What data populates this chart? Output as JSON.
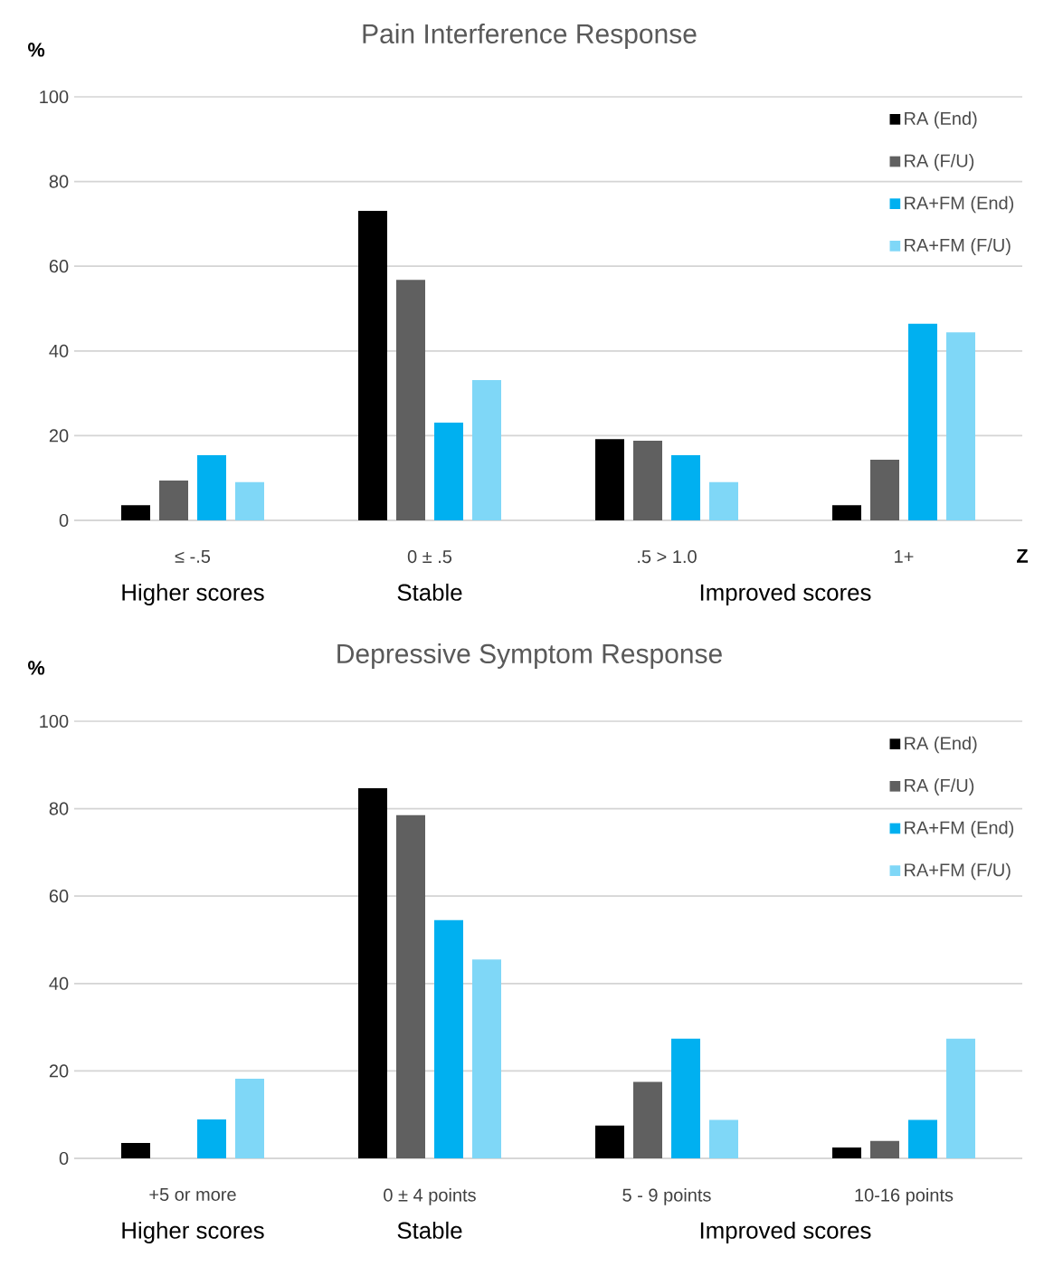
{
  "chart_data": [
    {
      "type": "bar",
      "title": "Pain Interference Response",
      "ylabel": "%",
      "xlabel": "Z",
      "categories": [
        "≤ -.5",
        "0 ± .5",
        ".5 > 1.0",
        "1+"
      ],
      "series": [
        {
          "name": "RA (End)",
          "color": "#000000",
          "values": [
            3.6,
            73.1,
            19.2,
            3.6
          ]
        },
        {
          "name": "RA (F/U)",
          "color": "#606060",
          "values": [
            9.4,
            56.8,
            18.8,
            14.3
          ]
        },
        {
          "name": "RA+FM (End)",
          "color": "#00b0f0",
          "values": [
            15.4,
            23.1,
            15.4,
            46.4
          ]
        },
        {
          "name": "RA+FM (F/U)",
          "color": "#7fd7f7",
          "values": [
            9.0,
            33.1,
            9.0,
            44.4
          ]
        }
      ],
      "ylim": [
        0,
        100
      ],
      "yticks": [
        0,
        20,
        40,
        60,
        80,
        100
      ],
      "grid": "y",
      "legend": "top right",
      "annotations": [
        "Higher scores",
        "Stable",
        "Improved scores"
      ]
    },
    {
      "type": "bar",
      "title": "Depressive Symptom Response",
      "ylabel": "%",
      "categories": [
        "+5 or more",
        "0 ± 4 points",
        "5 - 9 points",
        "10-16 points"
      ],
      "series": [
        {
          "name": "RA (End)",
          "color": "#000000",
          "values": [
            3.5,
            84.7,
            7.5,
            2.5
          ]
        },
        {
          "name": "RA (F/U)",
          "color": "#606060",
          "values": [
            0,
            78.5,
            17.5,
            4.0
          ]
        },
        {
          "name": "RA+FM (End)",
          "color": "#00b0f0",
          "values": [
            8.9,
            54.5,
            27.4,
            8.8
          ]
        },
        {
          "name": "RA+FM (F/U)",
          "color": "#7fd7f7",
          "values": [
            18.2,
            45.5,
            8.8,
            27.4
          ]
        }
      ],
      "ylim": [
        0,
        100
      ],
      "yticks": [
        0,
        20,
        40,
        60,
        80,
        100
      ],
      "grid": "y",
      "legend": "top right",
      "annotations": [
        "Higher scores",
        "Stable",
        "Improved scores"
      ]
    }
  ]
}
